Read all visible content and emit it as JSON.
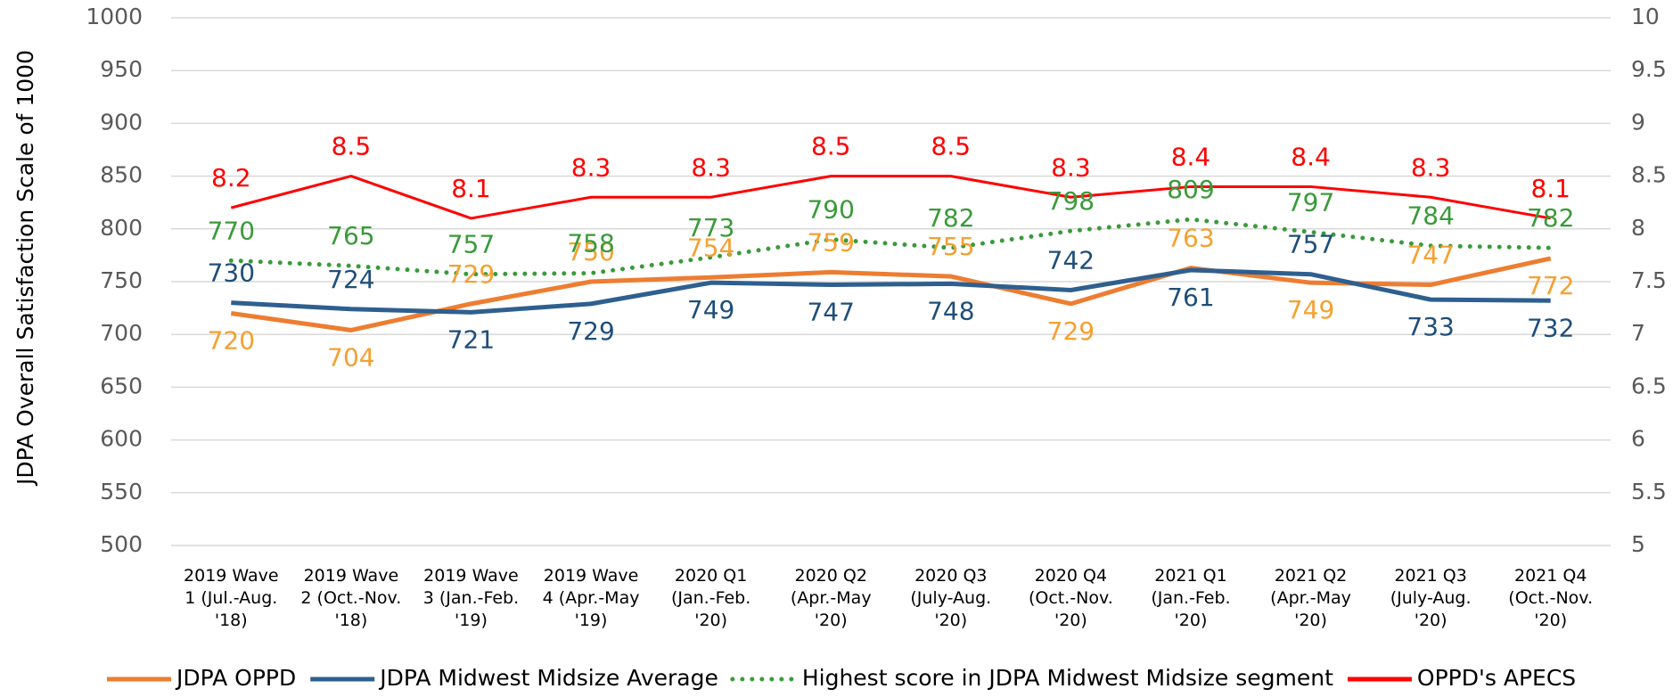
{
  "chart_data": {
    "type": "line",
    "y_axis_label": "JDPA  Overall Satisfaction Scale of  1000",
    "categories": [
      [
        "2019 Wave",
        "1 (Jul.-Aug.",
        "'18)"
      ],
      [
        "2019 Wave",
        "2 (Oct.-Nov.",
        "'18)"
      ],
      [
        "2019 Wave",
        "3 (Jan.-Feb.",
        "'19)"
      ],
      [
        "2019 Wave",
        "4 (Apr.-May",
        "'19)"
      ],
      [
        "2020 Q1",
        "(Jan.-Feb.",
        "'20)"
      ],
      [
        "2020 Q2",
        "(Apr.-May",
        "'20)"
      ],
      [
        "2020 Q3",
        "(July-Aug.",
        "'20)"
      ],
      [
        "2020 Q4",
        "(Oct.-Nov.",
        "'20)"
      ],
      [
        "2021 Q1",
        "(Jan.-Feb.",
        "'20)"
      ],
      [
        "2021 Q2",
        "(Apr.-May",
        "'20)"
      ],
      [
        "2021 Q3",
        "(July-Aug.",
        "'20)"
      ],
      [
        "2021 Q4",
        "(Oct.-Nov.",
        "'20)"
      ]
    ],
    "series": [
      {
        "name": "JDPA OPPD",
        "color": "#ed7d31",
        "label_color": "#f5a030",
        "style": "solid",
        "values": [
          720,
          704,
          729,
          750,
          754,
          759,
          755,
          729,
          763,
          749,
          747,
          772
        ]
      },
      {
        "name": "JDPA Midwest Midsize Average",
        "color": "#2e5f8f",
        "label_color": "#1f4e79",
        "style": "solid",
        "values": [
          730,
          724,
          721,
          729,
          749,
          747,
          748,
          742,
          761,
          757,
          733,
          732
        ]
      },
      {
        "name": "Highest score in JDPA Midwest Midsize segment",
        "color": "#3a9a3a",
        "label_color": "#3a9a3a",
        "style": "dotted",
        "values": [
          770,
          765,
          757,
          758,
          773,
          790,
          782,
          798,
          809,
          797,
          784,
          782
        ]
      },
      {
        "name": "OPPD's APECS",
        "color": "#ff0000",
        "label_color": "#ff0000",
        "style": "solid",
        "axis": "y2",
        "values": [
          8.2,
          8.5,
          8.1,
          8.3,
          8.3,
          8.5,
          8.5,
          8.3,
          8.4,
          8.4,
          8.3,
          8.1
        ]
      }
    ],
    "ylim": [
      500,
      1000
    ],
    "yticks": [
      500,
      550,
      600,
      650,
      700,
      750,
      800,
      850,
      900,
      950,
      1000
    ],
    "y2lim": [
      5,
      10
    ],
    "y2ticks": [
      5,
      5.5,
      6,
      6.5,
      7,
      7.5,
      8,
      8.5,
      9,
      9.5,
      10
    ],
    "grid": true,
    "legend": "bottom"
  }
}
